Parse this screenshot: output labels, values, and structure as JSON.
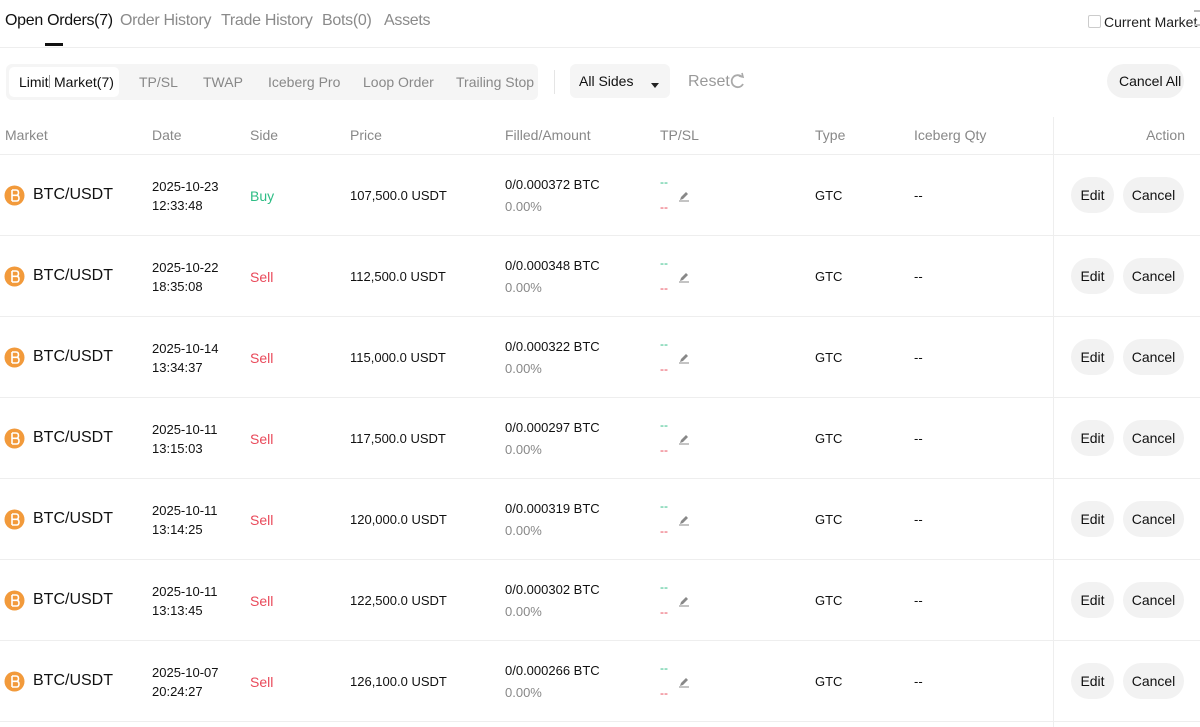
{
  "tabs": [
    "Open Orders(7)",
    "Order History",
    "Trade History",
    "Bots(0)",
    "Assets"
  ],
  "current_market": "Current Market",
  "order_types": [
    "Limit",
    "Market(7)",
    "TP/SL",
    "TWAP",
    "Iceberg Pro",
    "Loop Order",
    "Trailing Stop"
  ],
  "side_filter": "All Sides",
  "reset": "Reset",
  "cancel_all": "Cancel All",
  "table": {
    "columns": [
      "Market",
      "Date",
      "Side",
      "Price",
      "Filled/Amount",
      "TP/SL",
      "Type",
      "Iceberg Qty",
      "Action"
    ],
    "rows": [
      {
        "market": "BTC/USDT",
        "date": "2025-10-23",
        "time": "12:33:48",
        "side": "Buy",
        "side_color": "#2ebd85",
        "price": "107,500.0 USDT",
        "filled": "0/0.000372 BTC",
        "percent": "0.00%",
        "tp": "--",
        "sl": "--",
        "type": "GTC",
        "iceberg": "--",
        "edit": "Edit",
        "cancel": "Cancel"
      },
      {
        "market": "BTC/USDT",
        "date": "2025-10-22",
        "time": "18:35:08",
        "side": "Sell",
        "side_color": "#e9495a",
        "price": "112,500.0 USDT",
        "filled": "0/0.000348 BTC",
        "percent": "0.00%",
        "tp": "--",
        "sl": "--",
        "type": "GTC",
        "iceberg": "--",
        "edit": "Edit",
        "cancel": "Cancel"
      },
      {
        "market": "BTC/USDT",
        "date": "2025-10-14",
        "time": "13:34:37",
        "side": "Sell",
        "side_color": "#e9495a",
        "price": "115,000.0 USDT",
        "filled": "0/0.000322 BTC",
        "percent": "0.00%",
        "tp": "--",
        "sl": "--",
        "type": "GTC",
        "iceberg": "--",
        "edit": "Edit",
        "cancel": "Cancel"
      },
      {
        "market": "BTC/USDT",
        "date": "2025-10-11",
        "time": "13:15:03",
        "side": "Sell",
        "side_color": "#e9495a",
        "price": "117,500.0 USDT",
        "filled": "0/0.000297 BTC",
        "percent": "0.00%",
        "tp": "--",
        "sl": "--",
        "type": "GTC",
        "iceberg": "--",
        "edit": "Edit",
        "cancel": "Cancel"
      },
      {
        "market": "BTC/USDT",
        "date": "2025-10-11",
        "time": "13:14:25",
        "side": "Sell",
        "side_color": "#e9495a",
        "price": "120,000.0 USDT",
        "filled": "0/0.000319 BTC",
        "percent": "0.00%",
        "tp": "--",
        "sl": "--",
        "type": "GTC",
        "iceberg": "--",
        "edit": "Edit",
        "cancel": "Cancel"
      },
      {
        "market": "BTC/USDT",
        "date": "2025-10-11",
        "time": "13:13:45",
        "side": "Sell",
        "side_color": "#e9495a",
        "price": "122,500.0 USDT",
        "filled": "0/0.000302 BTC",
        "percent": "0.00%",
        "tp": "--",
        "sl": "--",
        "type": "GTC",
        "iceberg": "--",
        "edit": "Edit",
        "cancel": "Cancel"
      },
      {
        "market": "BTC/USDT",
        "date": "2025-10-07",
        "time": "20:24:27",
        "side": "Sell",
        "side_color": "#e9495a",
        "price": "126,100.0 USDT",
        "filled": "0/0.000266 BTC",
        "percent": "0.00%",
        "tp": "--",
        "sl": "--",
        "type": "GTC",
        "iceberg": "--",
        "edit": "Edit",
        "cancel": "Cancel"
      }
    ]
  }
}
